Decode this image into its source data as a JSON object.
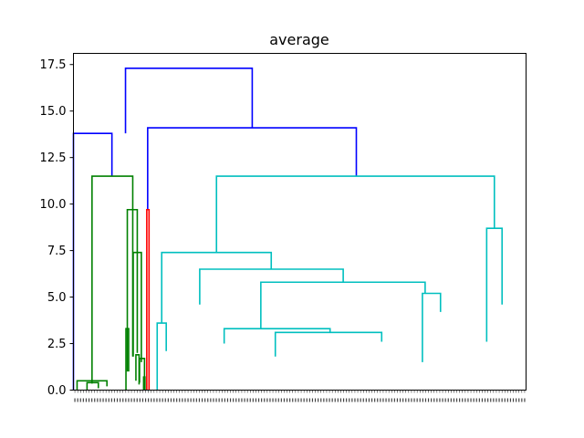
{
  "chart_data": {
    "type": "dendrogram",
    "title": "average",
    "xlabel": "",
    "ylabel": "",
    "ylim": [
      0,
      18.1
    ],
    "xlim": [
      0,
      1
    ],
    "yticks": [
      0.0,
      2.5,
      5.0,
      7.5,
      10.0,
      12.5,
      15.0,
      17.5
    ],
    "ytick_labels": [
      "0.0",
      "2.5",
      "5.0",
      "7.5",
      "10.0",
      "12.5",
      "15.0",
      "17.5"
    ],
    "x_tick_labels_note": "",
    "colors": {
      "blue": "#0000ff",
      "green": "#008000",
      "red": "#ff0000",
      "cyan": "#00bfbf"
    },
    "links": [
      {
        "x": [
          0.115,
          0.115,
          0.395,
          0.395
        ],
        "y": [
          13.8,
          17.3,
          17.3,
          14.1
        ],
        "color": "blue"
      },
      {
        "x": [
          0.0,
          0.0,
          0.085,
          0.085
        ],
        "y": [
          0.0,
          13.8,
          13.8,
          11.5
        ],
        "color": "blue"
      },
      {
        "x": [
          0.164,
          0.164,
          0.625,
          0.625
        ],
        "y": [
          9.7,
          14.1,
          14.1,
          11.5
        ],
        "color": "blue"
      },
      {
        "x": [
          0.041,
          0.041,
          0.131,
          0.131
        ],
        "y": [
          0.35,
          11.5,
          11.5,
          1.8
        ],
        "color": "green"
      },
      {
        "x": [
          0.008,
          0.008,
          0.074,
          0.074
        ],
        "y": [
          0.0,
          0.5,
          0.5,
          0.2
        ],
        "color": "green"
      },
      {
        "x": [
          0.03,
          0.03,
          0.055,
          0.055
        ],
        "y": [
          0.0,
          0.4,
          0.4,
          0.1
        ],
        "color": "green"
      },
      {
        "x": [
          0.119,
          0.119,
          0.141,
          0.141
        ],
        "y": [
          1.0,
          9.7,
          9.7,
          2.0
        ],
        "color": "green"
      },
      {
        "x": [
          0.132,
          0.132,
          0.15,
          0.15
        ],
        "y": [
          1.8,
          7.4,
          7.4,
          1.5
        ],
        "color": "green"
      },
      {
        "x": [
          0.116,
          0.116,
          0.122,
          0.122
        ],
        "y": [
          0.0,
          3.3,
          3.3,
          1.0
        ],
        "color": "green"
      },
      {
        "x": [
          0.138,
          0.138,
          0.145,
          0.145
        ],
        "y": [
          0.5,
          1.9,
          1.9,
          0.3
        ],
        "color": "green"
      },
      {
        "x": [
          0.146,
          0.146,
          0.157,
          0.157
        ],
        "y": [
          0.4,
          1.7,
          1.7,
          0.0
        ],
        "color": "green"
      },
      {
        "x": [
          0.155,
          0.155,
          0.158,
          0.158
        ],
        "y": [
          0.0,
          0.7,
          0.7,
          0.0
        ],
        "color": "green"
      },
      {
        "x": [
          0.162,
          0.162,
          0.167,
          0.167
        ],
        "y": [
          0.0,
          9.7,
          9.7,
          0.0
        ],
        "color": "red"
      },
      {
        "x": [
          0.316,
          0.316,
          0.93,
          0.93
        ],
        "y": [
          7.4,
          11.5,
          11.5,
          8.7
        ],
        "color": "cyan"
      },
      {
        "x": [
          0.195,
          0.195,
          0.437,
          0.437
        ],
        "y": [
          3.6,
          7.4,
          7.4,
          6.5
        ],
        "color": "cyan"
      },
      {
        "x": [
          0.279,
          0.279,
          0.596,
          0.596
        ],
        "y": [
          4.6,
          6.5,
          6.5,
          5.8
        ],
        "color": "cyan"
      },
      {
        "x": [
          0.414,
          0.414,
          0.777,
          0.777
        ],
        "y": [
          3.3,
          5.8,
          5.8,
          5.2
        ],
        "color": "cyan"
      },
      {
        "x": [
          0.771,
          0.771,
          0.811,
          0.811
        ],
        "y": [
          1.5,
          5.2,
          5.2,
          4.2
        ],
        "color": "cyan"
      },
      {
        "x": [
          0.913,
          0.913,
          0.947,
          0.947
        ],
        "y": [
          2.6,
          8.7,
          8.7,
          4.6
        ],
        "color": "cyan"
      },
      {
        "x": [
          0.333,
          0.333,
          0.567,
          0.567
        ],
        "y": [
          2.5,
          3.3,
          3.3,
          3.1
        ],
        "color": "cyan"
      },
      {
        "x": [
          0.446,
          0.446,
          0.681,
          0.681
        ],
        "y": [
          1.8,
          3.1,
          3.1,
          2.6
        ],
        "color": "cyan"
      },
      {
        "x": [
          0.185,
          0.185,
          0.205,
          0.205
        ],
        "y": [
          0.0,
          3.6,
          3.6,
          2.1
        ],
        "color": "cyan"
      }
    ]
  }
}
